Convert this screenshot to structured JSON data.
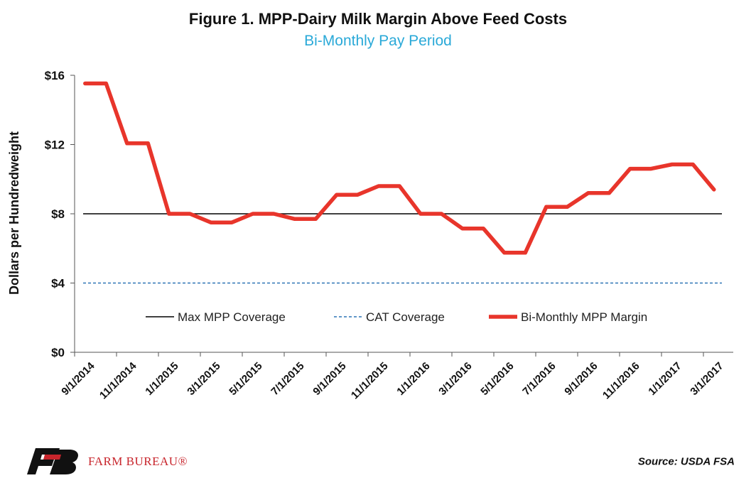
{
  "chart_data": {
    "type": "line",
    "title": "Figure 1. MPP-Dairy Milk Margin Above Feed Costs",
    "subtitle": "Bi-Monthly Pay Period",
    "ylabel": "Dollars per Hundredweight",
    "xlabel": "",
    "ylim": [
      0,
      16
    ],
    "yticks": [
      0,
      4,
      8,
      12,
      16
    ],
    "ytick_labels": [
      "$0",
      "$4",
      "$8",
      "$12",
      "$16"
    ],
    "x_tick_labels": [
      "9/1/2014",
      "11/1/2014",
      "1/1/2015",
      "3/1/2015",
      "5/1/2015",
      "7/1/2015",
      "9/1/2015",
      "11/1/2015",
      "1/1/2016",
      "3/1/2016",
      "5/1/2016",
      "7/1/2016",
      "9/1/2016",
      "11/1/2016",
      "1/1/2017",
      "3/1/2017"
    ],
    "grid": false,
    "legend_position": "bottom-center",
    "series": [
      {
        "name": "Max MPP Coverage",
        "style": "solid",
        "color": "#000000",
        "x": [
          "9/1/2014",
          "3/1/2017"
        ],
        "values": [
          8.0,
          8.0
        ]
      },
      {
        "name": "CAT Coverage",
        "style": "dashed",
        "color": "#2e75b6",
        "x": [
          "9/1/2014",
          "3/1/2017"
        ],
        "values": [
          4.0,
          4.0
        ]
      },
      {
        "name": "Bi-Monthly MPP Margin",
        "style": "solid-thick",
        "color": "#e8352b",
        "x": [
          "9/1/2014",
          "10/1/2014",
          "11/1/2014",
          "12/1/2014",
          "1/1/2015",
          "2/1/2015",
          "3/1/2015",
          "4/1/2015",
          "5/1/2015",
          "6/1/2015",
          "7/1/2015",
          "8/1/2015",
          "9/1/2015",
          "10/1/2015",
          "11/1/2015",
          "12/1/2015",
          "1/1/2016",
          "2/1/2016",
          "3/1/2016",
          "4/1/2016",
          "5/1/2016",
          "6/1/2016",
          "7/1/2016",
          "8/1/2016",
          "9/1/2016",
          "10/1/2016",
          "11/1/2016",
          "12/1/2016",
          "1/1/2017",
          "2/1/2017",
          "3/1/2017"
        ],
        "values": [
          15.53,
          15.53,
          12.07,
          12.07,
          8.0,
          8.0,
          7.5,
          7.5,
          8.0,
          8.0,
          7.7,
          7.7,
          9.1,
          9.1,
          9.6,
          9.6,
          8.0,
          8.0,
          7.15,
          7.15,
          5.75,
          5.75,
          8.4,
          8.4,
          9.2,
          9.2,
          10.6,
          10.6,
          10.85,
          10.85,
          9.4
        ]
      }
    ]
  },
  "footer": {
    "logo_text": "FARM BUREAU®",
    "source": "Source: USDA FSA"
  },
  "colors": {
    "logo_black": "#111111",
    "logo_red": "#c8252c",
    "subtitle": "#2aa9d8"
  }
}
